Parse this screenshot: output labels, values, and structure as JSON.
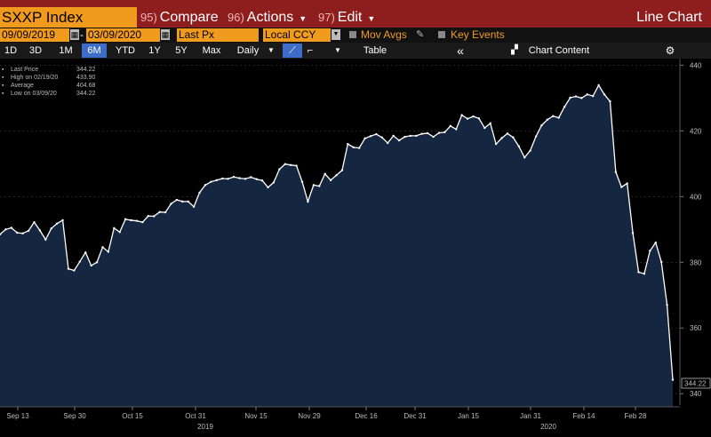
{
  "header": {
    "ticker": "SXXP Index",
    "compare_num": "95)",
    "compare": "Compare",
    "actions_num": "96)",
    "actions": "Actions",
    "edit_num": "97)",
    "edit": "Edit",
    "title": "Line Chart"
  },
  "toolbar": {
    "start_date": "09/09/2019",
    "end_date": "03/09/2020",
    "field": "Last Px",
    "currency": "Local CCY",
    "mov_avgs": "Mov Avgs",
    "key_events": "Key Events"
  },
  "ranges": {
    "items": [
      "1D",
      "3D",
      "1M",
      "6M",
      "YTD",
      "1Y",
      "5Y",
      "Max"
    ],
    "active": "6M",
    "periodicity": "Daily",
    "table": "Table",
    "chart_content": "Chart Content"
  },
  "legend": {
    "last": {
      "label": "Last Price",
      "value": "344.22"
    },
    "high": {
      "label": "High on 02/19/20",
      "value": "433.90"
    },
    "avg": {
      "label": "Average",
      "value": "404.68"
    },
    "low": {
      "label": "Low on 03/09/20",
      "value": "344.22"
    }
  },
  "chart_data": {
    "type": "area",
    "ylim": [
      336,
      442
    ],
    "yticks": [
      340,
      360,
      380,
      400,
      420,
      440
    ],
    "last_label": "344.22",
    "x_labels": [
      "Sep 13",
      "Sep 30",
      "Oct 15",
      "Oct 31",
      "Nov 15",
      "Nov 29",
      "Dec 16",
      "Dec 31",
      "Jan 15",
      "Jan 31",
      "Feb 14",
      "Feb 28"
    ],
    "year_labels": [
      "2019",
      "2020"
    ],
    "colors": {
      "fill": "#152640",
      "line": "#ffffff",
      "grid": "#3a3a3a"
    },
    "series": [
      {
        "values": [
          388.5,
          390.0,
          390.5,
          389.0,
          388.8,
          389.6,
          392.2,
          389.7,
          386.9,
          390.3,
          391.8,
          392.8,
          378.0,
          377.5,
          380.2,
          383.0,
          379.0,
          380.0,
          384.6,
          383.2,
          390.4,
          389.2,
          393.1,
          392.8,
          392.6,
          392.2,
          394.1,
          394.0,
          395.3,
          395.2,
          397.8,
          399.0,
          398.5,
          398.5,
          396.9,
          401.2,
          403.5,
          404.5,
          405.0,
          405.5,
          405.4,
          406.0,
          405.6,
          405.4,
          405.9,
          405.3,
          404.9,
          402.8,
          404.3,
          408.3,
          409.9,
          409.6,
          409.4,
          404.5,
          398.5,
          403.5,
          403.2,
          406.9,
          405.0,
          406.5,
          408.0,
          416.0,
          415.0,
          414.8,
          417.7,
          418.4,
          419.0,
          418.0,
          416.3,
          418.5,
          417.1,
          418.2,
          418.5,
          418.5,
          419.1,
          419.3,
          418.2,
          419.4,
          419.6,
          421.5,
          420.5,
          424.8,
          423.7,
          424.4,
          423.8,
          420.9,
          422.3,
          416.0,
          417.8,
          419.2,
          418.0,
          415.3,
          411.9,
          414.0,
          418.3,
          421.7,
          423.4,
          424.5,
          424.0,
          427.3,
          430.1,
          430.5,
          430.0,
          431.1,
          430.6,
          433.9,
          431.1,
          429.0,
          407.5,
          402.9,
          404.0,
          388.9,
          377.0,
          376.5,
          383.5,
          386.0,
          380.1,
          367.0,
          344.22
        ]
      }
    ]
  }
}
